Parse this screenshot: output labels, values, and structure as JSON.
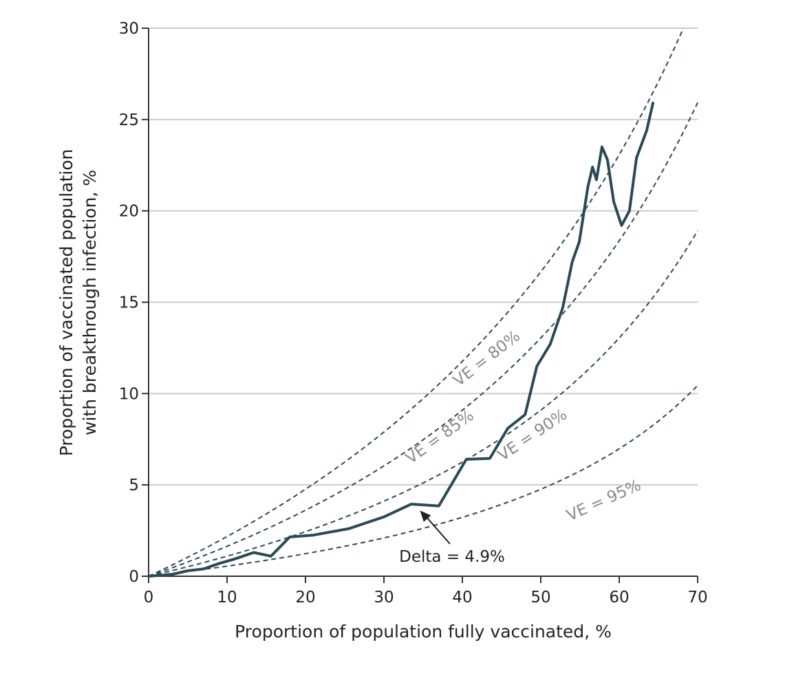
{
  "chart_data": {
    "type": "line",
    "xlabel": "Proportion of population fully vaccinated, %",
    "ylabel_lines": [
      "Proportion of vaccinated population",
      "with breakthrough infection, %"
    ],
    "xlim": [
      0,
      70
    ],
    "ylim": [
      0,
      30
    ],
    "xticks": [
      0,
      10,
      20,
      30,
      40,
      50,
      60,
      70
    ],
    "yticks": [
      0,
      5,
      10,
      15,
      20,
      25,
      30
    ],
    "grid": "horizontal",
    "colors": {
      "observed": "#2b4a55",
      "reference": "#2b4a55",
      "grid": "#cccccc",
      "axis": "#333333",
      "curve_label": "#8a8a8a"
    },
    "observed_series": {
      "points": [
        [
          0,
          0
        ],
        [
          3,
          0.1
        ],
        [
          5,
          0.3
        ],
        [
          7,
          0.4
        ],
        [
          9,
          0.7
        ],
        [
          11,
          0.95
        ],
        [
          13.4,
          1.3
        ],
        [
          15.6,
          1.1
        ],
        [
          18,
          2.15
        ],
        [
          21,
          2.25
        ],
        [
          25.5,
          2.6
        ],
        [
          30,
          3.25
        ],
        [
          33.5,
          3.95
        ],
        [
          37,
          3.85
        ],
        [
          40.5,
          6.4
        ],
        [
          43.5,
          6.45
        ],
        [
          45.8,
          8.1
        ],
        [
          48,
          8.85
        ],
        [
          49.5,
          11.5
        ],
        [
          51.2,
          12.7
        ],
        [
          52.8,
          14.7
        ],
        [
          54,
          17.2
        ],
        [
          54.9,
          18.3
        ],
        [
          56,
          21.3
        ],
        [
          56.6,
          22.4
        ],
        [
          57.1,
          21.7
        ],
        [
          57.8,
          23.5
        ],
        [
          58.5,
          22.8
        ],
        [
          59.3,
          20.5
        ],
        [
          60.3,
          19.2
        ],
        [
          61.3,
          20.0
        ],
        [
          62.2,
          22.9
        ],
        [
          63.5,
          24.4
        ],
        [
          64.3,
          25.9
        ]
      ]
    },
    "reference_series": [
      {
        "name": "VE = 80%",
        "ve": 0.8
      },
      {
        "name": "VE = 85%",
        "ve": 0.85
      },
      {
        "name": "VE = 90%",
        "ve": 0.9
      },
      {
        "name": "VE = 95%",
        "ve": 0.95
      }
    ],
    "annotation": {
      "text": "Delta = 4.9%",
      "arrow_to": [
        34.6,
        3.6
      ]
    }
  }
}
